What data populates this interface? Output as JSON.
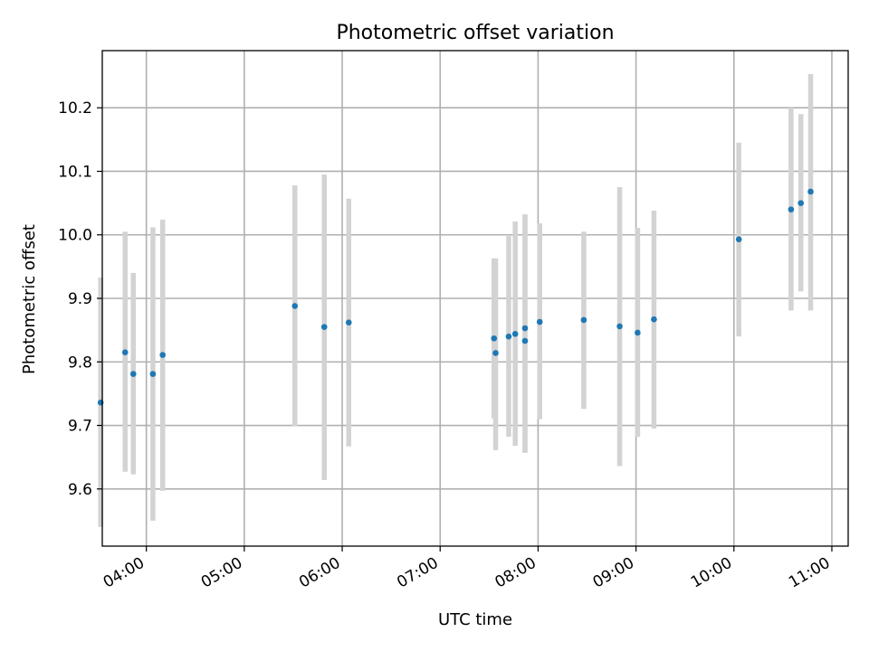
{
  "chart_data": {
    "type": "scatter",
    "title": "Photometric offset variation",
    "xlabel": "UTC time",
    "ylabel": "Photometric offset",
    "x_axis_type": "time",
    "xlim": [
      "03:33",
      "11:10"
    ],
    "ylim": [
      9.51,
      10.29
    ],
    "x_ticks": [
      "04:00",
      "05:00",
      "06:00",
      "07:00",
      "08:00",
      "09:00",
      "10:00",
      "11:00"
    ],
    "y_ticks": [
      9.6,
      9.7,
      9.8,
      9.9,
      10.0,
      10.1,
      10.2
    ],
    "y_tick_labels": [
      "9.6",
      "9.7",
      "9.8",
      "9.9",
      "10.0",
      "10.1",
      "10.2"
    ],
    "grid": true,
    "legend": "none",
    "colors": {
      "points": "#1f77b4",
      "error_bars": "#d3d3d3"
    },
    "series": [
      {
        "points": [
          {
            "x": "03:32",
            "y": 9.736,
            "ylow": 9.54,
            "yhigh": 9.933
          },
          {
            "x": "03:47",
            "y": 9.815,
            "ylow": 9.627,
            "yhigh": 10.005
          },
          {
            "x": "03:52",
            "y": 9.781,
            "ylow": 9.623,
            "yhigh": 9.94
          },
          {
            "x": "04:04",
            "y": 9.781,
            "ylow": 9.55,
            "yhigh": 10.012
          },
          {
            "x": "04:10",
            "y": 9.811,
            "ylow": 9.597,
            "yhigh": 10.024
          },
          {
            "x": "05:31",
            "y": 9.888,
            "ylow": 9.699,
            "yhigh": 10.078
          },
          {
            "x": "05:49",
            "y": 9.855,
            "ylow": 9.614,
            "yhigh": 10.095
          },
          {
            "x": "06:04",
            "y": 9.862,
            "ylow": 9.667,
            "yhigh": 10.057
          },
          {
            "x": "07:33",
            "y": 9.837,
            "ylow": 9.711,
            "yhigh": 9.963
          },
          {
            "x": "07:34",
            "y": 9.814,
            "ylow": 9.661,
            "yhigh": 9.963
          },
          {
            "x": "07:42",
            "y": 9.84,
            "ylow": 9.682,
            "yhigh": 9.998
          },
          {
            "x": "07:46",
            "y": 9.844,
            "ylow": 9.668,
            "yhigh": 10.021
          },
          {
            "x": "07:52",
            "y": 9.853,
            "ylow": 9.657,
            "yhigh": 10.032
          },
          {
            "x": "07:52",
            "y": 9.833,
            "ylow": 9.657,
            "yhigh": 10.032
          },
          {
            "x": "08:01",
            "y": 9.863,
            "ylow": 9.71,
            "yhigh": 10.018
          },
          {
            "x": "08:28",
            "y": 9.866,
            "ylow": 9.726,
            "yhigh": 10.005
          },
          {
            "x": "08:50",
            "y": 9.856,
            "ylow": 9.636,
            "yhigh": 10.075
          },
          {
            "x": "09:01",
            "y": 9.846,
            "ylow": 9.682,
            "yhigh": 10.011
          },
          {
            "x": "09:11",
            "y": 9.867,
            "ylow": 9.695,
            "yhigh": 10.038
          },
          {
            "x": "10:03",
            "y": 9.993,
            "ylow": 9.84,
            "yhigh": 10.145
          },
          {
            "x": "10:35",
            "y": 10.04,
            "ylow": 9.881,
            "yhigh": 10.2
          },
          {
            "x": "10:41",
            "y": 10.05,
            "ylow": 9.911,
            "yhigh": 10.19
          },
          {
            "x": "10:47",
            "y": 10.068,
            "ylow": 9.881,
            "yhigh": 10.253
          }
        ]
      }
    ]
  }
}
